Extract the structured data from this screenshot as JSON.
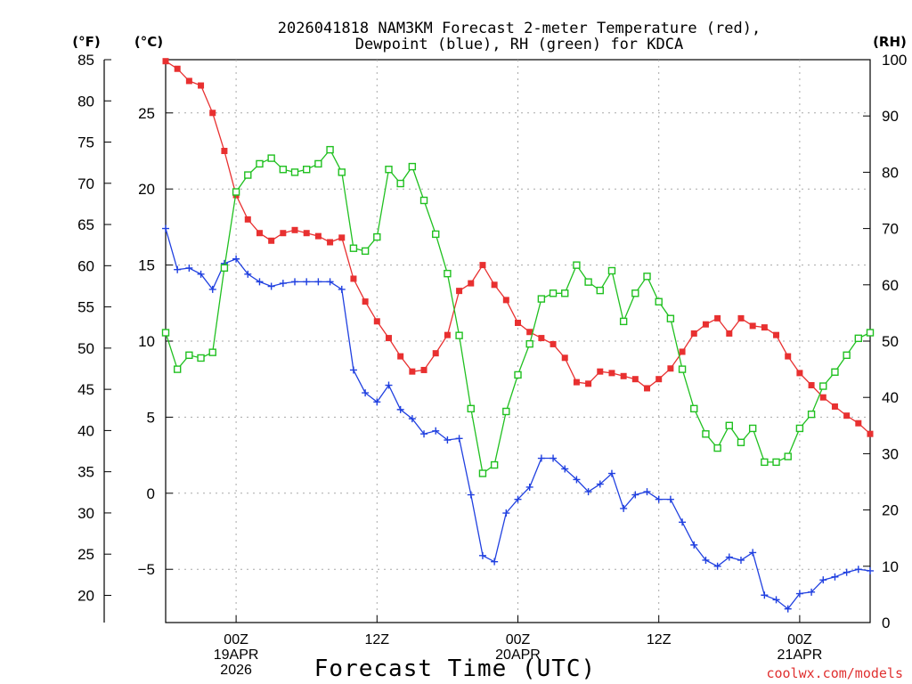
{
  "chart_data": {
    "type": "line",
    "title_line1": "2026041818 NAM3KM Forecast 2-meter Temperature (red),",
    "title_line2": "Dewpoint (blue), RH (green) for KDCA",
    "xlabel": "Forecast Time (UTC)",
    "credit": "coolwx.com/models",
    "units": {
      "fahrenheit": "(°F)",
      "celsius": "(°C)",
      "rh": "(RH)"
    },
    "x_hours_range": [
      18,
      78
    ],
    "x_ticks": [
      {
        "hour": 24,
        "line1": "00Z",
        "line2": "19APR",
        "line3": "2026"
      },
      {
        "hour": 36,
        "line1": "12Z",
        "line2": "",
        "line3": ""
      },
      {
        "hour": 48,
        "line1": "00Z",
        "line2": "20APR",
        "line3": ""
      },
      {
        "hour": 60,
        "line1": "12Z",
        "line2": "",
        "line3": ""
      },
      {
        "hour": 72,
        "line1": "00Z",
        "line2": "21APR",
        "line3": ""
      }
    ],
    "celsius_axis": {
      "range": [
        -8.5,
        28.5
      ],
      "ticks": [
        25,
        20,
        15,
        10,
        5,
        0,
        -5
      ],
      "tick_labels": [
        "25",
        "20",
        "15",
        "10",
        "5",
        "0",
        "−5"
      ]
    },
    "fahrenheit_axis": {
      "range": [
        16.7,
        85
      ],
      "ticks": [
        85,
        80,
        75,
        70,
        65,
        60,
        55,
        50,
        45,
        40,
        35,
        30,
        25,
        20
      ],
      "tick_labels": [
        "85",
        "80",
        "75",
        "70",
        "65",
        "60",
        "55",
        "50",
        "45",
        "40",
        "35",
        "30",
        "25",
        "20"
      ]
    },
    "rh_axis": {
      "range": [
        0,
        100
      ],
      "ticks": [
        100,
        90,
        80,
        70,
        60,
        50,
        40,
        30,
        20,
        10,
        0
      ],
      "tick_labels": [
        "100",
        "90",
        "80",
        "70",
        "60",
        "50",
        "40",
        "30",
        "20",
        "10",
        "0"
      ]
    },
    "series": [
      {
        "name": "2-meter Temperature",
        "color": "#e83030",
        "marker": "filled-square",
        "axis": "celsius",
        "x": [
          18,
          19,
          20,
          21,
          22,
          23,
          24,
          25,
          26,
          27,
          28,
          29,
          30,
          31,
          32,
          33,
          34,
          35,
          36,
          37,
          38,
          39,
          40,
          41,
          42,
          43,
          44,
          45,
          46,
          47,
          48,
          49,
          50,
          51,
          52,
          53,
          54,
          55,
          56,
          57,
          58,
          59,
          60,
          61,
          62,
          63,
          64,
          65,
          66,
          67,
          68,
          69,
          70,
          71,
          72,
          73,
          74,
          75,
          76,
          77,
          78
        ],
        "values": [
          28.4,
          27.9,
          27.1,
          26.8,
          25.0,
          22.5,
          19.6,
          18.0,
          17.1,
          16.6,
          17.1,
          17.3,
          17.1,
          16.9,
          16.5,
          16.8,
          14.1,
          12.6,
          11.3,
          10.2,
          9.0,
          8.0,
          8.1,
          9.2,
          10.4,
          13.3,
          13.8,
          15.0,
          13.7,
          12.7,
          11.2,
          10.6,
          10.2,
          9.8,
          8.9,
          7.3,
          7.2,
          8.0,
          7.9,
          7.7,
          7.5,
          6.9,
          7.5,
          8.2,
          9.3,
          10.5,
          11.1,
          11.5,
          10.5,
          11.5,
          11.0,
          10.9,
          10.4,
          9.0,
          7.9,
          7.1,
          6.3,
          5.7,
          5.1,
          4.6,
          3.9
        ]
      },
      {
        "name": "Dewpoint",
        "color": "#2040e0",
        "marker": "plus",
        "axis": "celsius",
        "x": [
          18,
          19,
          20,
          21,
          22,
          23,
          24,
          25,
          26,
          27,
          28,
          29,
          30,
          31,
          32,
          33,
          34,
          35,
          36,
          37,
          38,
          39,
          40,
          41,
          42,
          43,
          44,
          45,
          46,
          47,
          48,
          49,
          50,
          51,
          52,
          53,
          54,
          55,
          56,
          57,
          58,
          59,
          60,
          61,
          62,
          63,
          64,
          65,
          66,
          67,
          68,
          69,
          70,
          71,
          72,
          73,
          74,
          75,
          76,
          77,
          78
        ],
        "values": [
          17.4,
          14.7,
          14.8,
          14.4,
          13.4,
          15.1,
          15.4,
          14.4,
          13.9,
          13.6,
          13.8,
          13.9,
          13.9,
          13.9,
          13.9,
          13.4,
          8.1,
          6.6,
          6.0,
          7.1,
          5.5,
          4.9,
          3.9,
          4.1,
          3.5,
          3.6,
          -0.1,
          -4.1,
          -4.5,
          -1.3,
          -0.4,
          0.4,
          2.3,
          2.3,
          1.6,
          0.9,
          0.1,
          0.6,
          1.3,
          -1.0,
          -0.1,
          0.1,
          -0.4,
          -0.4,
          -1.9,
          -3.4,
          -4.4,
          -4.8,
          -4.2,
          -4.4,
          -3.9,
          -6.7,
          -7.0,
          -7.6,
          -6.6,
          -6.5,
          -5.7,
          -5.5,
          -5.2,
          -5.0,
          -5.1
        ]
      },
      {
        "name": "RH",
        "color": "#20c020",
        "marker": "open-square",
        "axis": "rh",
        "x": [
          18,
          19,
          20,
          21,
          22,
          23,
          24,
          25,
          26,
          27,
          28,
          29,
          30,
          31,
          32,
          33,
          34,
          35,
          36,
          37,
          38,
          39,
          40,
          41,
          42,
          43,
          44,
          45,
          46,
          47,
          48,
          49,
          50,
          51,
          52,
          53,
          54,
          55,
          56,
          57,
          58,
          59,
          60,
          61,
          62,
          63,
          64,
          65,
          66,
          67,
          68,
          69,
          70,
          71,
          72,
          73,
          74,
          75,
          76,
          77,
          78
        ],
        "values": [
          51.5,
          45.0,
          47.5,
          47.0,
          48.0,
          63.0,
          76.5,
          79.5,
          81.5,
          82.5,
          80.5,
          80.0,
          80.5,
          81.5,
          84.0,
          80.0,
          66.5,
          66.0,
          68.5,
          80.5,
          78.0,
          81.0,
          75.0,
          69.0,
          62.0,
          51.0,
          38.0,
          26.5,
          28.0,
          37.5,
          44.0,
          49.5,
          57.5,
          58.5,
          58.5,
          63.5,
          60.5,
          59.0,
          62.5,
          53.5,
          58.5,
          61.5,
          57.0,
          54.0,
          45.0,
          38.0,
          33.5,
          31.0,
          35.0,
          32.0,
          34.5,
          28.5,
          28.5,
          29.5,
          34.5,
          37.0,
          42.0,
          44.5,
          47.5,
          50.5,
          51.5
        ]
      }
    ]
  }
}
